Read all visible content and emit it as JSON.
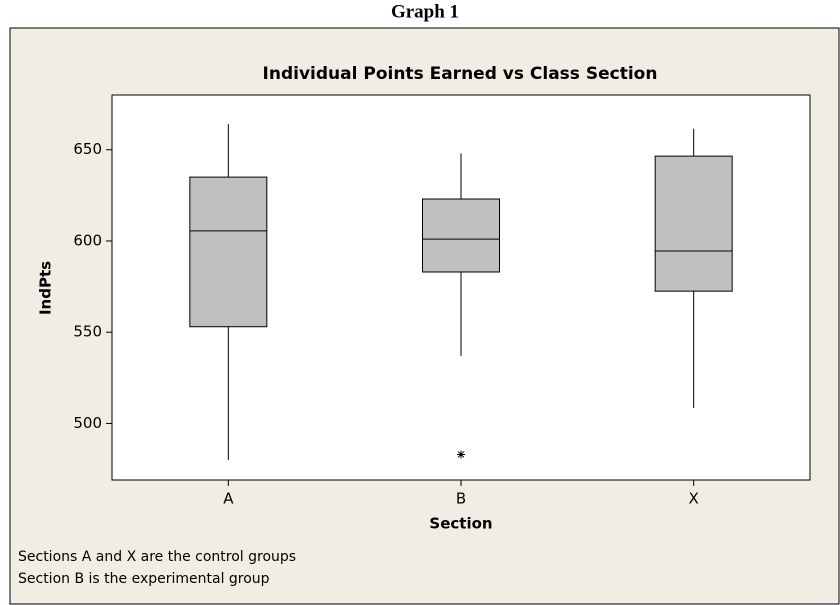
{
  "chart_data": {
    "type": "box",
    "heading": "Graph 1",
    "title": "Individual Points Earned vs Class Section",
    "x_label": "Section",
    "y_label": "IndPts",
    "categories": [
      "A",
      "B",
      "X"
    ],
    "boxes": [
      {
        "whisker_low": 480,
        "q1": 553,
        "median": 605.5,
        "q3": 635,
        "whisker_high": 664,
        "outliers": []
      },
      {
        "whisker_low": 537,
        "q1": 583,
        "median": 601,
        "q3": 623,
        "whisker_high": 648,
        "outliers": [
          483
        ]
      },
      {
        "whisker_low": 508.5,
        "q1": 572.5,
        "median": 594.5,
        "q3": 646.5,
        "whisker_high": 661.5,
        "outliers": []
      }
    ],
    "color": "#c0c0c0",
    "ylim": [
      469,
      680
    ],
    "yticks": [
      500,
      550,
      600,
      650
    ],
    "annotations": [
      "Sections A and X are the control groups",
      "Section B is the experimental group"
    ]
  }
}
